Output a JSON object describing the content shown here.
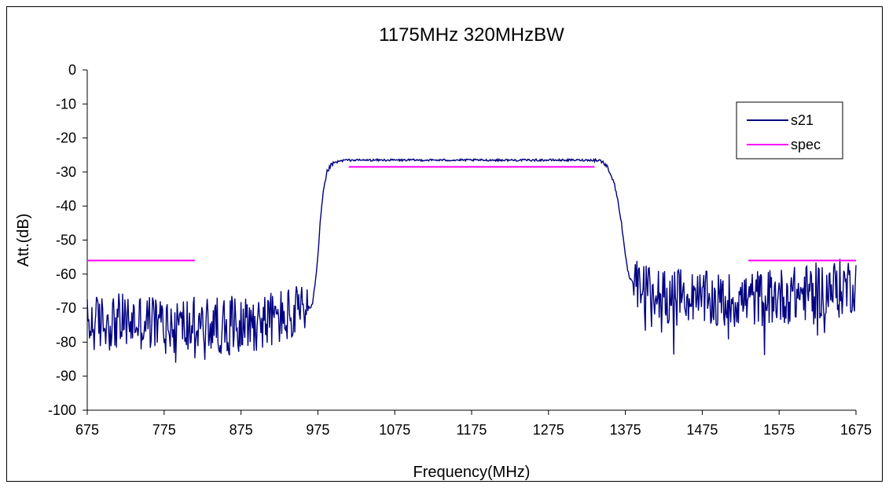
{
  "chart_data": {
    "type": "line",
    "title": "1175MHz 320MHzBW",
    "xlabel": "Frequency(MHz)",
    "ylabel": "Att.(dB)",
    "xlim": [
      675,
      1675
    ],
    "ylim": [
      -100,
      0
    ],
    "x_ticks": [
      675,
      775,
      875,
      975,
      1075,
      1175,
      1275,
      1375,
      1475,
      1575,
      1675
    ],
    "y_ticks": [
      0,
      -10,
      -20,
      -30,
      -40,
      -50,
      -60,
      -70,
      -80,
      -90,
      -100
    ],
    "grid": false,
    "legend_position": "top-right",
    "series": [
      {
        "name": "s21",
        "color": "#000080",
        "noise": true,
        "x": [
          675,
          700,
          750,
          800,
          850,
          900,
          940,
          960,
          968,
          972,
          975,
          978,
          982,
          987,
          992,
          1000,
          1010,
          1050,
          1100,
          1175,
          1250,
          1300,
          1330,
          1340,
          1345,
          1350,
          1355,
          1360,
          1365,
          1370,
          1375,
          1380,
          1385,
          1390,
          1395,
          1400,
          1450,
          1500,
          1550,
          1600,
          1650,
          1675
        ],
        "y": [
          -75,
          -74,
          -74,
          -75,
          -75,
          -74,
          -72,
          -71,
          -69,
          -62,
          -55,
          -45,
          -36,
          -30,
          -28,
          -27,
          -26.5,
          -26.5,
          -26.5,
          -26.5,
          -26.5,
          -26.5,
          -26.5,
          -26.5,
          -27,
          -28,
          -30,
          -33,
          -38,
          -45,
          -55,
          -61,
          -63,
          -64,
          -65,
          -65,
          -67,
          -68,
          -67,
          -66,
          -64,
          -63
        ]
      },
      {
        "name": "spec",
        "color": "#ff00ff",
        "segments": [
          {
            "x": [
              675,
              815
            ],
            "y": [
              -56,
              -56
            ]
          },
          {
            "x": [
              1015,
              1335
            ],
            "y": [
              -28.5,
              -28.5
            ]
          },
          {
            "x": [
              1535,
              1675
            ],
            "y": [
              -56,
              -56
            ]
          }
        ]
      }
    ]
  }
}
